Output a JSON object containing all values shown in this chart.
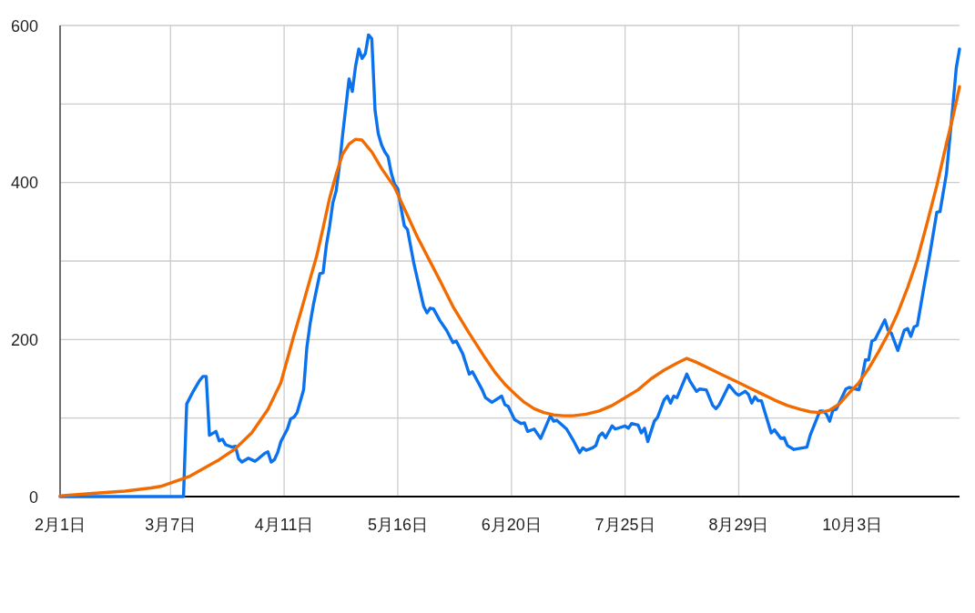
{
  "chart_data": {
    "type": "line",
    "xlim": [
      "--02-01",
      "--11-05"
    ],
    "xticks": [
      {
        "value": "--02-01",
        "label": "2月1日"
      },
      {
        "value": "--03-07",
        "label": "3月7日"
      },
      {
        "value": "--04-11",
        "label": "4月11日"
      },
      {
        "value": "--05-16",
        "label": "5月16日"
      },
      {
        "value": "--06-20",
        "label": "6月20日"
      },
      {
        "value": "--07-25",
        "label": "7月25日"
      },
      {
        "value": "--08-29",
        "label": "8月29日"
      },
      {
        "value": "--10-03",
        "label": "10月3日"
      }
    ],
    "ylim": [
      0,
      600
    ],
    "yticks": [
      0,
      {
        "value": 100,
        "label": null
      },
      200,
      {
        "value": 300,
        "label": null
      },
      400,
      {
        "value": 500,
        "label": null
      },
      600
    ],
    "grid": true,
    "series": [
      {
        "color": "#0b72ed",
        "x": [
          "--02-01",
          "--03-11",
          "--03-12",
          "--03-14",
          "--03-16",
          "--03-17",
          "--03-18",
          "--03-19",
          "--03-21",
          "--03-22",
          "--03-23",
          "--03-24",
          "--03-26",
          "--03-27",
          "--03-28",
          "--03-29",
          "--03-31",
          "--04-02",
          "--04-03",
          "--04-05",
          "--04-06",
          "--04-07",
          "--04-08",
          "--04-09",
          "--04-10",
          "--04-12",
          "--04-13",
          "--04-14",
          "--04-15",
          "--04-17",
          "--04-18",
          "--04-19",
          "--04-20",
          "--04-22",
          "--04-23",
          "--04-24",
          "--04-25",
          "--04-26",
          "--04-27",
          "--04-28",
          "--04-29",
          "--04-30",
          "--05-01",
          "--05-02",
          "--05-03",
          "--05-04",
          "--05-05",
          "--05-06",
          "--05-07",
          "--05-08",
          "--05-09",
          "--05-10",
          "--05-11",
          "--05-12",
          "--05-13",
          "--05-14",
          "--05-15",
          "--05-16",
          "--05-17",
          "--05-18",
          "--05-19",
          "--05-21",
          "--05-23",
          "--05-24",
          "--05-25",
          "--05-26",
          "--05-27",
          "--05-29",
          "--05-31",
          "--06-02",
          "--06-03",
          "--06-05",
          "--06-07",
          "--06-08",
          "--06-11",
          "--06-12",
          "--06-14",
          "--06-17",
          "--06-18",
          "--06-19",
          "--06-21",
          "--06-23",
          "--06-24",
          "--06-25",
          "--06-27",
          "--06-29",
          "--07-02",
          "--07-03",
          "--07-04",
          "--07-07",
          "--07-09",
          "--07-11",
          "--07-12",
          "--07-13",
          "--07-15",
          "--07-16",
          "--07-17",
          "--07-18",
          "--07-19",
          "--07-21",
          "--07-22",
          "--07-25",
          "--07-26",
          "--07-27",
          "--07-29",
          "--07-30",
          "--07-31",
          "--08-01",
          "--08-03",
          "--08-04",
          "--08-06",
          "--08-07",
          "--08-08",
          "--08-09",
          "--08-10",
          "--08-13",
          "--08-14",
          "--08-16",
          "--08-17",
          "--08-19",
          "--08-21",
          "--08-22",
          "--08-23",
          "--08-26",
          "--08-28",
          "--08-29",
          "--08-31",
          "--09-01",
          "--09-02",
          "--09-03",
          "--09-04",
          "--09-05",
          "--09-08",
          "--09-09",
          "--09-11",
          "--09-12",
          "--09-13",
          "--09-15",
          "--09-19",
          "--09-20",
          "--09-23",
          "--09-24",
          "--09-25",
          "--09-26",
          "--09-27",
          "--09-28",
          "--10-01",
          "--10-02",
          "--10-05",
          "--10-06",
          "--10-07",
          "--10-08",
          "--10-09",
          "--10-10",
          "--10-13",
          "--10-14",
          "--10-15",
          "--10-17",
          "--10-19",
          "--10-20",
          "--10-21",
          "--10-22",
          "--10-23",
          "--10-25",
          "--10-27",
          "--10-29",
          "--10-30",
          "--11-01",
          "--11-03",
          "--11-04",
          "--11-05"
        ],
        "values": [
          0,
          0,
          118,
          134,
          148,
          153,
          153,
          78,
          83,
          71,
          73,
          66,
          63,
          64,
          48,
          44,
          49,
          45,
          48,
          55,
          57,
          44,
          47,
          56,
          70,
          86,
          99,
          101,
          107,
          136,
          190,
          220,
          244,
          284,
          285,
          320,
          344,
          374,
          389,
          420,
          460,
          496,
          532,
          516,
          548,
          570,
          558,
          564,
          588,
          583,
          492,
          462,
          448,
          439,
          433,
          412,
          398,
          392,
          368,
          345,
          340,
          296,
          260,
          242,
          234,
          240,
          239,
          224,
          212,
          196,
          198,
          182,
          156,
          159,
          136,
          126,
          120,
          128,
          117,
          115,
          98,
          93,
          94,
          83,
          86,
          74,
          103,
          96,
          97,
          86,
          72,
          56,
          62,
          59,
          62,
          65,
          77,
          81,
          75,
          90,
          86,
          90,
          87,
          93,
          91,
          81,
          87,
          70,
          96,
          101,
          123,
          128,
          119,
          128,
          126,
          156,
          147,
          134,
          137,
          136,
          116,
          112,
          117,
          142,
          132,
          129,
          134,
          130,
          119,
          127,
          122,
          122,
          81,
          85,
          74,
          75,
          65,
          60,
          63,
          78,
          109,
          109,
          105,
          96,
          110,
          111,
          137,
          139,
          136,
          152,
          174,
          174,
          198,
          200,
          225,
          212,
          208,
          186,
          212,
          214,
          204,
          216,
          218,
          266,
          312,
          362,
          363,
          412,
          500,
          546,
          570
        ]
      },
      {
        "color": "#f26b00",
        "x": [
          "--02-01",
          "--02-11",
          "--02-21",
          "--03-01",
          "--03-04",
          "--03-13",
          "--03-22",
          "--03-27",
          "--04-01",
          "--04-06",
          "--04-10",
          "--04-14",
          "--04-16",
          "--04-19",
          "--04-21",
          "--04-23",
          "--04-25",
          "--04-27",
          "--04-29",
          "--05-01",
          "--05-03",
          "--05-05",
          "--05-08",
          "--05-11",
          "--05-15",
          "--05-19",
          "--05-22",
          "--05-26",
          "--05-29",
          "--06-02",
          "--06-07",
          "--06-12",
          "--06-15",
          "--06-18",
          "--06-21",
          "--06-24",
          "--06-27",
          "--06-30",
          "--07-03",
          "--07-06",
          "--07-09",
          "--07-13",
          "--07-17",
          "--07-21",
          "--07-25",
          "--07-29",
          "--08-02",
          "--08-06",
          "--08-10",
          "--08-13",
          "--08-16",
          "--08-20",
          "--08-24",
          "--08-28",
          "--09-01",
          "--09-05",
          "--09-09",
          "--09-13",
          "--09-17",
          "--09-20",
          "--09-23",
          "--09-26",
          "--09-29",
          "--10-02",
          "--10-05",
          "--10-08",
          "--10-11",
          "--10-14",
          "--10-17",
          "--10-20",
          "--10-23",
          "--10-26",
          "--10-29",
          "--11-01",
          "--11-03",
          "--11-05"
        ],
        "values": [
          1,
          4,
          7,
          11,
          13,
          26,
          47,
          61,
          81,
          111,
          145,
          205,
          233,
          277,
          306,
          342,
          380,
          410,
          436,
          449,
          455,
          454,
          439,
          418,
          394,
          358,
          331,
          299,
          275,
          242,
          208,
          176,
          158,
          143,
          131,
          120,
          112,
          107,
          104,
          103,
          103,
          105,
          109,
          116,
          126,
          136,
          150,
          161,
          170,
          176,
          171,
          163,
          155,
          147,
          139,
          131,
          123,
          116,
          111,
          108,
          107,
          110,
          118,
          132,
          145,
          163,
          184,
          207,
          234,
          266,
          302,
          348,
          396,
          450,
          484,
          522
        ]
      }
    ]
  }
}
